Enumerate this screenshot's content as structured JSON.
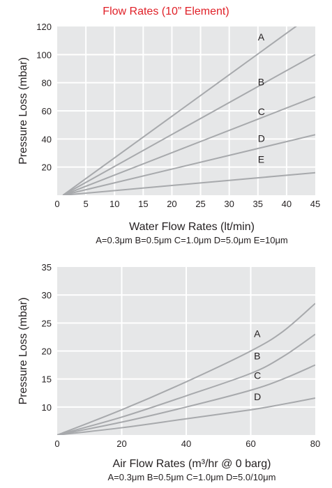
{
  "page_title": "Flow Rates (10” Element)",
  "colors": {
    "plot_bg": "#e6e7e8",
    "grid": "#ffffff",
    "line": "#a7a9ac",
    "title": "#e02028"
  },
  "chart_data": [
    {
      "type": "line",
      "title": "",
      "xlabel": "Water Flow Rates (lt/min)",
      "sublabel": "A=0.3μm B=0.5μm C=1.0μm D=5.0μm E=10μm",
      "ylabel": "Pressure Loss (mbar)",
      "xlim": [
        0,
        45
      ],
      "ylim": [
        0,
        120
      ],
      "xticks": [
        0,
        5,
        10,
        15,
        20,
        25,
        30,
        35,
        40,
        45
      ],
      "yticks": [
        20,
        40,
        60,
        80,
        100,
        120
      ],
      "grid": true,
      "series": [
        {
          "name": "A",
          "x": [
            1,
            45
          ],
          "y": [
            0,
            130
          ],
          "label_at": [
            35,
            110
          ]
        },
        {
          "name": "B",
          "x": [
            1,
            45
          ],
          "y": [
            0,
            100
          ],
          "label_at": [
            35,
            78
          ]
        },
        {
          "name": "C",
          "x": [
            1,
            45
          ],
          "y": [
            0,
            70
          ],
          "label_at": [
            35,
            57
          ]
        },
        {
          "name": "D",
          "x": [
            1,
            45
          ],
          "y": [
            0,
            43
          ],
          "label_at": [
            35,
            38
          ]
        },
        {
          "name": "E",
          "x": [
            1,
            45
          ],
          "y": [
            0,
            16
          ],
          "label_at": [
            35,
            23
          ]
        }
      ]
    },
    {
      "type": "line",
      "title": "",
      "xlabel": "Air Flow Rates (m³/hr @ 0 barg)",
      "sublabel": "A=0.3μm B=0.5μm C=1.0μm D=5.0/10μm",
      "ylabel": "Pressure Loss (mbar)",
      "xlim": [
        0,
        80
      ],
      "ylim": [
        5,
        35
      ],
      "xticks": [
        0,
        20,
        40,
        60,
        80
      ],
      "yticks": [
        10,
        15,
        20,
        25,
        30,
        35
      ],
      "grid": true,
      "series": [
        {
          "name": "A",
          "x": [
            0,
            20,
            40,
            60,
            70,
            80
          ],
          "y": [
            5,
            9.5,
            14.5,
            20,
            23.5,
            28.5
          ],
          "label_at": [
            61,
            22.5
          ]
        },
        {
          "name": "B",
          "x": [
            0,
            20,
            40,
            60,
            70,
            80
          ],
          "y": [
            5,
            8.2,
            12,
            16,
            19,
            23
          ],
          "label_at": [
            61,
            18.5
          ]
        },
        {
          "name": "C",
          "x": [
            0,
            20,
            40,
            60,
            70,
            80
          ],
          "y": [
            5,
            7.3,
            10,
            13,
            15,
            17.5
          ],
          "label_at": [
            61,
            15
          ]
        },
        {
          "name": "D",
          "x": [
            0,
            20,
            40,
            60,
            70,
            80
          ],
          "y": [
            5,
            6.3,
            7.9,
            9.5,
            10.5,
            11.6
          ],
          "label_at": [
            61,
            11.2
          ]
        }
      ]
    }
  ]
}
